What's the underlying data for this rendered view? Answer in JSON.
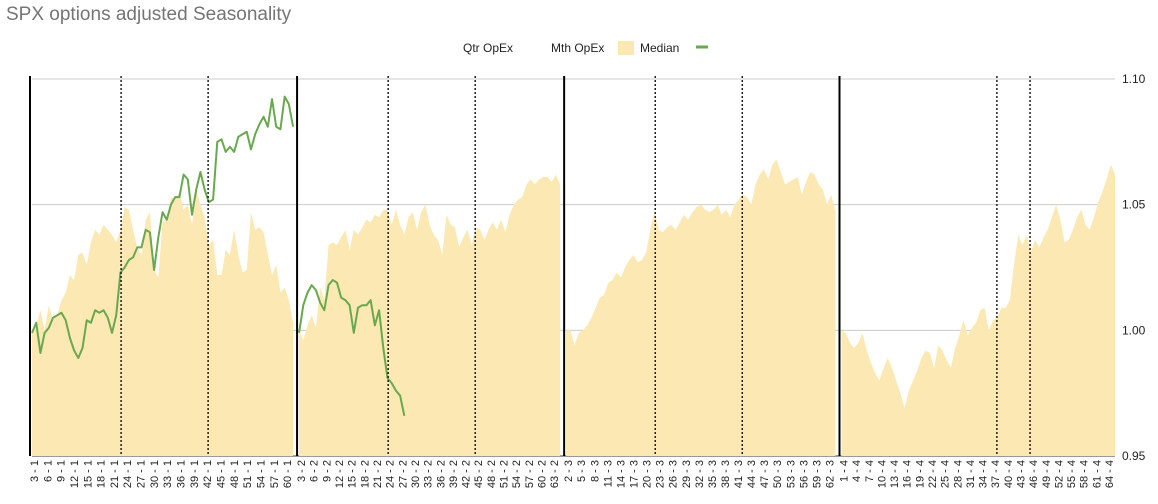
{
  "chart_data": {
    "type": "area",
    "title": "SPX options adjusted Seasonality",
    "legend": {
      "placement": "top-center",
      "entries": [
        {
          "label": "Qtr OpEx",
          "kind": "line-black"
        },
        {
          "label": "Mth OpEx",
          "kind": "line-dotted"
        },
        {
          "label": "Median",
          "kind": "area",
          "color": "#fce8b2"
        },
        {
          "label": "",
          "kind": "line",
          "color": "#6aa84f"
        }
      ]
    },
    "colors": {
      "area": "#fce8b2",
      "line": "#6aa84f",
      "grid": "#cccccc",
      "text": "#222222",
      "title": "#757575"
    },
    "ylim": [
      0.95,
      1.1
    ],
    "yticks": [
      "0.95",
      "1.00",
      "1.05",
      "1.10"
    ],
    "ytick_values": [
      0.95,
      1.0,
      1.05,
      1.1
    ],
    "grid": true,
    "quarters": [
      {
        "median": [
          0.999,
          1.002,
          1.008,
          1.0,
          1.01,
          1.004,
          1.006,
          1.012,
          1.015,
          1.022,
          1.02,
          1.03,
          1.031,
          1.026,
          1.035,
          1.04,
          1.038,
          1.042,
          1.04,
          1.038,
          1.035,
          1.04,
          1.049,
          1.048,
          1.04,
          1.033,
          1.03,
          1.044,
          1.047,
          1.024,
          1.021,
          1.043,
          1.044,
          1.053,
          1.052,
          1.055,
          1.048,
          1.05,
          1.042,
          1.056,
          1.05,
          1.045,
          1.034,
          1.036,
          1.022,
          1.022,
          1.032,
          1.03,
          1.04,
          1.03,
          1.023,
          1.024,
          1.047,
          1.04,
          1.041,
          1.039,
          1.03,
          1.022,
          1.026,
          1.015,
          1.017,
          1.012,
          1.003
        ],
        "line": [
          0.999,
          1.003,
          0.991,
          0.999,
          1.001,
          1.005,
          1.006,
          1.007,
          1.004,
          0.997,
          0.992,
          0.989,
          0.993,
          1.004,
          1.003,
          1.008,
          1.007,
          1.008,
          1.005,
          0.999,
          1.006,
          1.023,
          1.025,
          1.028,
          1.029,
          1.033,
          1.033,
          1.04,
          1.039,
          1.024,
          1.037,
          1.047,
          1.044,
          1.05,
          1.053,
          1.053,
          1.062,
          1.06,
          1.046,
          1.056,
          1.063,
          1.056,
          1.051,
          1.052,
          1.075,
          1.076,
          1.071,
          1.073,
          1.071,
          1.077,
          1.078,
          1.079,
          1.072,
          1.078,
          1.082,
          1.085,
          1.081,
          1.092,
          1.081,
          1.08,
          1.093,
          1.09,
          1.081
        ]
      },
      {
        "median": [
          1.0,
          0.996,
          1.002,
          1.006,
          1.001,
          1.017,
          1.012,
          1.034,
          1.035,
          1.034,
          1.037,
          1.04,
          1.032,
          1.04,
          1.038,
          1.041,
          1.044,
          1.043,
          1.046,
          1.045,
          1.048,
          1.048,
          1.042,
          1.048,
          1.042,
          1.038,
          1.045,
          1.047,
          1.04,
          1.047,
          1.05,
          1.042,
          1.038,
          1.036,
          1.03,
          1.046,
          1.042,
          1.041,
          1.033,
          1.037,
          1.04,
          1.034,
          1.041,
          1.04,
          1.036,
          1.04,
          1.043,
          1.04,
          1.044,
          1.039,
          1.046,
          1.05,
          1.052,
          1.053,
          1.058,
          1.06,
          1.058,
          1.06,
          1.061,
          1.061,
          1.059,
          1.062,
          1.058
        ],
        "line": [
          0.999,
          1.01,
          1.015,
          1.018,
          1.016,
          1.011,
          1.008,
          1.018,
          1.02,
          1.019,
          1.013,
          1.012,
          1.01,
          0.999,
          1.009,
          1.01,
          1.01,
          1.012,
          1.002,
          1.008,
          0.993,
          0.981,
          0.979,
          0.976,
          0.974,
          0.966
        ]
      },
      {
        "median": [
          1.0,
          1.0,
          0.994,
          0.999,
          1.0,
          1.002,
          1.005,
          1.009,
          1.013,
          1.014,
          1.019,
          1.02,
          1.023,
          1.021,
          1.025,
          1.028,
          1.03,
          1.027,
          1.028,
          1.031,
          1.04,
          1.047,
          1.04,
          1.039,
          1.041,
          1.042,
          1.04,
          1.043,
          1.046,
          1.044,
          1.047,
          1.049,
          1.05,
          1.048,
          1.047,
          1.048,
          1.05,
          1.046,
          1.048,
          1.045,
          1.05,
          1.052,
          1.054,
          1.053,
          1.05,
          1.058,
          1.062,
          1.064,
          1.06,
          1.066,
          1.068,
          1.063,
          1.058,
          1.059,
          1.06,
          1.061,
          1.054,
          1.059,
          1.063,
          1.062,
          1.058,
          1.056,
          1.05,
          1.054,
          1.047
        ],
        "line": []
      },
      {
        "median": [
          1.0,
          0.999,
          0.995,
          0.993,
          0.995,
          0.999,
          0.992,
          0.987,
          0.983,
          0.98,
          0.985,
          0.989,
          0.985,
          0.98,
          0.975,
          0.969,
          0.976,
          0.98,
          0.984,
          0.989,
          0.992,
          0.991,
          0.985,
          0.994,
          0.992,
          0.988,
          0.985,
          0.993,
          0.998,
          1.004,
          0.998,
          1.001,
          1.003,
          1.008,
          1.009,
          1.0,
          1.004,
          1.005,
          1.009,
          1.009,
          1.012,
          1.026,
          1.038,
          1.034,
          1.038,
          1.031,
          1.036,
          1.033,
          1.037,
          1.04,
          1.045,
          1.05,
          1.044,
          1.035,
          1.036,
          1.04,
          1.045,
          1.048,
          1.042,
          1.04,
          1.045,
          1.051,
          1.055,
          1.06,
          1.066,
          1.062
        ],
        "line": []
      }
    ],
    "xtick_labels": [
      [
        "3 - 1",
        "6 - 1",
        "9 - 1",
        "12 - 1",
        "15 - 1",
        "18 - 1",
        "21 - 1",
        "24 - 1",
        "27 - 1",
        "30 - 1",
        "33 - 1",
        "36 - 1",
        "39 - 1",
        "42 - 1",
        "45 - 1",
        "48 - 1",
        "51 - 1",
        "54 - 1",
        "57 - 1",
        "60 - 1"
      ],
      [
        "3 - 2",
        "6 - 2",
        "9 - 2",
        "12 - 2",
        "15 - 2",
        "18 - 2",
        "21 - 2",
        "24 - 2",
        "27 - 2",
        "30 - 2",
        "33 - 2",
        "36 - 2",
        "39 - 2",
        "42 - 2",
        "45 - 2",
        "48 - 2",
        "51 - 2",
        "54 - 2",
        "57 - 2",
        "60 - 2",
        "63 - 2"
      ],
      [
        "2 - 3",
        "5 - 3",
        "8 - 3",
        "11 - 3",
        "14 - 3",
        "17 - 3",
        "20 - 3",
        "23 - 3",
        "26 - 3",
        "29 - 3",
        "32 - 3",
        "35 - 3",
        "38 - 3",
        "41 - 3",
        "44 - 3",
        "47 - 3",
        "50 - 3",
        "53 - 3",
        "56 - 3",
        "59 - 3",
        "62 - 3"
      ],
      [
        "1 - 4",
        "4 - 4",
        "7 - 4",
        "10 - 4",
        "13 - 4",
        "16 - 4",
        "19 - 4",
        "22 - 4",
        "25 - 4",
        "28 - 4",
        "31 - 4",
        "34 - 4",
        "37 - 4",
        "40 - 4",
        "43 - 4",
        "46 - 4",
        "49 - 4",
        "52 - 4",
        "55 - 4",
        "58 - 4",
        "61 - 4",
        "64 - 4"
      ]
    ],
    "qtr_opex_after_index": [
      0,
      63,
      126,
      191
    ],
    "mth_opex_at_index": [
      21,
      42,
      84,
      105,
      147,
      168,
      228,
      236
    ]
  }
}
